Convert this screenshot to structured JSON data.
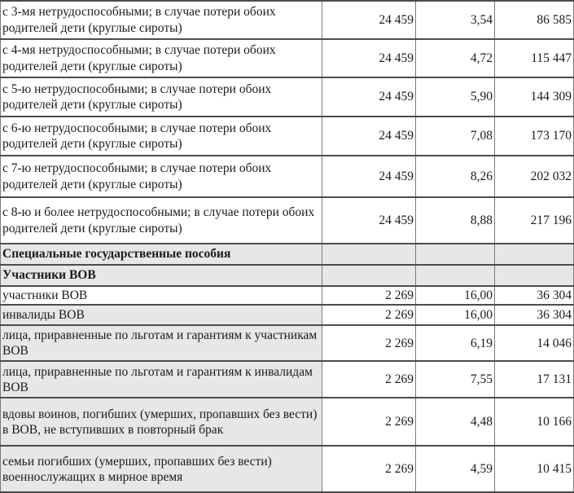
{
  "document": {
    "kind": "benefits-table",
    "language": "ru",
    "shade_color": "#e7e7e7",
    "border_color": "#4c4c4c"
  },
  "table": {
    "columns": [
      {
        "key": "label",
        "name": "category-description"
      },
      {
        "key": "base",
        "name": "base-amount"
      },
      {
        "key": "coef",
        "name": "coefficient"
      },
      {
        "key": "amount",
        "name": "total-amount"
      }
    ],
    "rows": [
      {
        "label": "с 3-мя нетрудоспособными; в случае потери обоих родителей дети (круглые сироты)",
        "base": "24 459",
        "coef": "3,54",
        "amount": "86 585",
        "style": "plain"
      },
      {
        "label": "с 4-мя нетрудоспособными; в случае потери обоих родителей дети (круглые сироты)",
        "base": "24 459",
        "coef": "4,72",
        "amount": "115 447",
        "style": "plain"
      },
      {
        "label": "с 5-ю нетрудоспособными; в случае потери обоих родителей дети (круглые сироты)",
        "base": "24 459",
        "coef": "5,90",
        "amount": "144 309",
        "style": "plain"
      },
      {
        "label": "с 6-ю нетрудоспособными; в случае потери обоих родителей дети (круглые сироты)",
        "base": "24 459",
        "coef": "7,08",
        "amount": "173 170",
        "style": "plain"
      },
      {
        "label": "с 7-ю нетрудоспособными; в случае потери обоих родителей дети (круглые сироты)",
        "base": "24 459",
        "coef": "8,26",
        "amount": "202 032",
        "style": "plain"
      },
      {
        "label": "с 8-ю и более нетрудоспособными; в случае потери обоих родителей дети (круглые сироты)",
        "base": "24 459",
        "coef": "8,88",
        "amount": "217 196",
        "style": "plain"
      },
      {
        "label": "Специальные государственные пособия",
        "base": "",
        "coef": "",
        "amount": "",
        "style": "section"
      },
      {
        "label": "Участники ВОВ",
        "base": "",
        "coef": "",
        "amount": "",
        "style": "section"
      },
      {
        "label": "участники ВОВ",
        "base": "2 269",
        "coef": "16,00",
        "amount": "36 304",
        "style": "plain"
      },
      {
        "label": "инвалиды ВОВ",
        "base": "2 269",
        "coef": "16,00",
        "amount": "36 304",
        "style": "shaded-label"
      },
      {
        "label": "лица, приравненные по льготам и гарантиям к участникам ВОВ",
        "base": "2 269",
        "coef": "6,19",
        "amount": "14 046",
        "style": "shaded-label"
      },
      {
        "label": "лица, приравненные по льготам и гарантиям к инвалидам ВОВ",
        "base": "2 269",
        "coef": "7,55",
        "amount": "17 131",
        "style": "shaded-label"
      },
      {
        "label": "вдовы воинов, погибших (умерших, пропавших без вести) в ВОВ, не вступивших в повторный брак",
        "base": "2 269",
        "coef": "4,48",
        "amount": "10 166",
        "style": "shaded-label"
      },
      {
        "label": "семьи погибших (умерших, пропавших без вести) военнослужащих в мирное время",
        "base": "2 269",
        "coef": "4,59",
        "amount": "10 415",
        "style": "shaded-label"
      }
    ]
  }
}
